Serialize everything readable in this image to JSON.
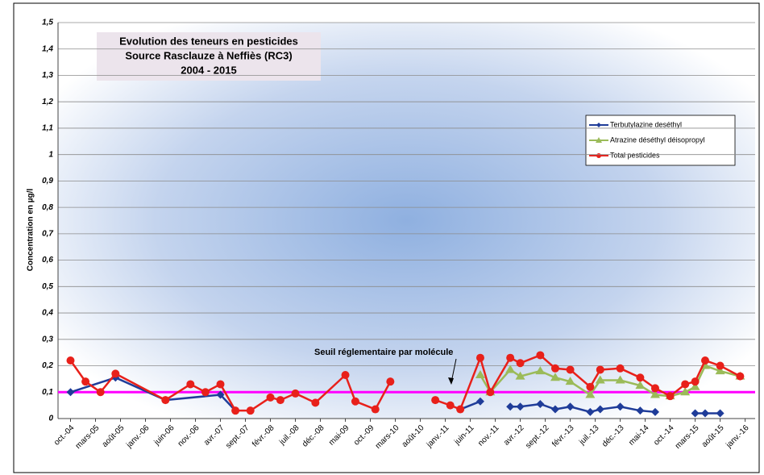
{
  "chart_data": {
    "type": "line",
    "title": [
      "Evolution des teneurs en pesticides",
      "Source Rasclauze à Neffiès (RC3)",
      "2004 - 2015"
    ],
    "y_label": "Concentration en µg/l",
    "xlim": [
      -2.5,
      137
    ],
    "xticks": [
      {
        "value": 0,
        "label": "oct.-04"
      },
      {
        "value": 5,
        "label": "mars-05"
      },
      {
        "value": 10,
        "label": "août-05"
      },
      {
        "value": 15,
        "label": "janv.-06"
      },
      {
        "value": 20,
        "label": "juin-06"
      },
      {
        "value": 25,
        "label": "nov.-06"
      },
      {
        "value": 30,
        "label": "avr.-07"
      },
      {
        "value": 35,
        "label": "sept.-07"
      },
      {
        "value": 40,
        "label": "févr.-08"
      },
      {
        "value": 45,
        "label": "juil.-08"
      },
      {
        "value": 50,
        "label": "déc.-08"
      },
      {
        "value": 55,
        "label": "mai-09"
      },
      {
        "value": 60,
        "label": "oct.-09"
      },
      {
        "value": 65,
        "label": "mars-10"
      },
      {
        "value": 70,
        "label": "août-10"
      },
      {
        "value": 75,
        "label": "janv.-11"
      },
      {
        "value": 80,
        "label": "juin-11"
      },
      {
        "value": 85,
        "label": "nov.-11"
      },
      {
        "value": 90,
        "label": "avr.-12"
      },
      {
        "value": 95,
        "label": "sept.-12"
      },
      {
        "value": 100,
        "label": "févr.-13"
      },
      {
        "value": 105,
        "label": "juil.-13"
      },
      {
        "value": 110,
        "label": "déc.-13"
      },
      {
        "value": 115,
        "label": "mai-14"
      },
      {
        "value": 120,
        "label": "oct.-14"
      },
      {
        "value": 125,
        "label": "mars-15"
      },
      {
        "value": 130,
        "label": "août-15"
      },
      {
        "value": 135,
        "label": "janv.-16"
      }
    ],
    "ylim": [
      0,
      1.5
    ],
    "yticks": [
      0,
      {
        "value": 0.1,
        "label": "0,1"
      },
      {
        "value": 0.2,
        "label": "0,2"
      },
      {
        "value": 0.3,
        "label": "0,3"
      },
      {
        "value": 0.4,
        "label": "0,4"
      },
      {
        "value": 0.5,
        "label": "0,5"
      },
      {
        "value": 0.6,
        "label": "0,6"
      },
      {
        "value": 0.7,
        "label": "0,7"
      },
      {
        "value": 0.8,
        "label": "0,8"
      },
      {
        "value": 0.9,
        "label": "0,9"
      },
      1,
      {
        "value": 1.1,
        "label": "1,1"
      },
      {
        "value": 1.2,
        "label": "1,2"
      },
      {
        "value": 1.3,
        "label": "1,3"
      },
      {
        "value": 1.4,
        "label": "1,4"
      },
      {
        "value": 1.5,
        "label": "1,5"
      }
    ],
    "grid": true,
    "legend": "upper right",
    "threshold": {
      "value": 0.1,
      "color": "#ff00ff",
      "label": "Seuil réglementaire par molécule"
    },
    "series": [
      {
        "name": "Terbutylazine deséthyl",
        "color": "#1f3c99",
        "marker": "diamond",
        "x": [
          0,
          9,
          19,
          30,
          33,
          null,
          78,
          82,
          null,
          88,
          90,
          94,
          97,
          100,
          104,
          106,
          110,
          114,
          117,
          null,
          125,
          127,
          130
        ],
        "values": [
          0.1,
          0.155,
          0.07,
          0.09,
          0.03,
          null,
          0.035,
          0.065,
          null,
          0.045,
          0.045,
          0.055,
          0.035,
          0.045,
          0.025,
          0.035,
          0.045,
          0.03,
          0.025,
          null,
          0.02,
          0.02,
          0.02
        ]
      },
      {
        "name": "Atrazine déséthyl déisopropyl",
        "color": "#9bbb59",
        "marker": "triangle",
        "x": [
          82,
          84,
          88,
          90,
          94,
          97,
          100,
          104,
          106,
          110,
          114,
          117,
          120,
          123,
          125,
          127,
          130,
          134
        ],
        "values": [
          0.165,
          0.1,
          0.185,
          0.16,
          0.18,
          0.155,
          0.14,
          0.09,
          0.145,
          0.145,
          0.125,
          0.09,
          0.085,
          0.1,
          0.12,
          0.2,
          0.18,
          0.16
        ]
      },
      {
        "name": "Total pesticides",
        "color": "#e8201a",
        "marker": "circle",
        "x": [
          0,
          3,
          6,
          9,
          19,
          24,
          27,
          30,
          33,
          36,
          40,
          42,
          45,
          49,
          55,
          57,
          61,
          64,
          null,
          73,
          76,
          78,
          82,
          84,
          88,
          90,
          94,
          97,
          100,
          104,
          106,
          110,
          114,
          117,
          120,
          123,
          125,
          127,
          130,
          134
        ],
        "values": [
          0.22,
          0.14,
          0.1,
          0.17,
          0.07,
          0.13,
          0.1,
          0.13,
          0.03,
          0.03,
          0.08,
          0.07,
          0.095,
          0.06,
          0.165,
          0.065,
          0.035,
          0.14,
          null,
          0.07,
          0.05,
          0.035,
          0.23,
          0.1,
          0.23,
          0.21,
          0.24,
          0.19,
          0.185,
          0.12,
          0.185,
          0.19,
          0.155,
          0.115,
          0.085,
          0.13,
          0.14,
          0.22,
          0.2,
          0.16
        ]
      }
    ]
  }
}
